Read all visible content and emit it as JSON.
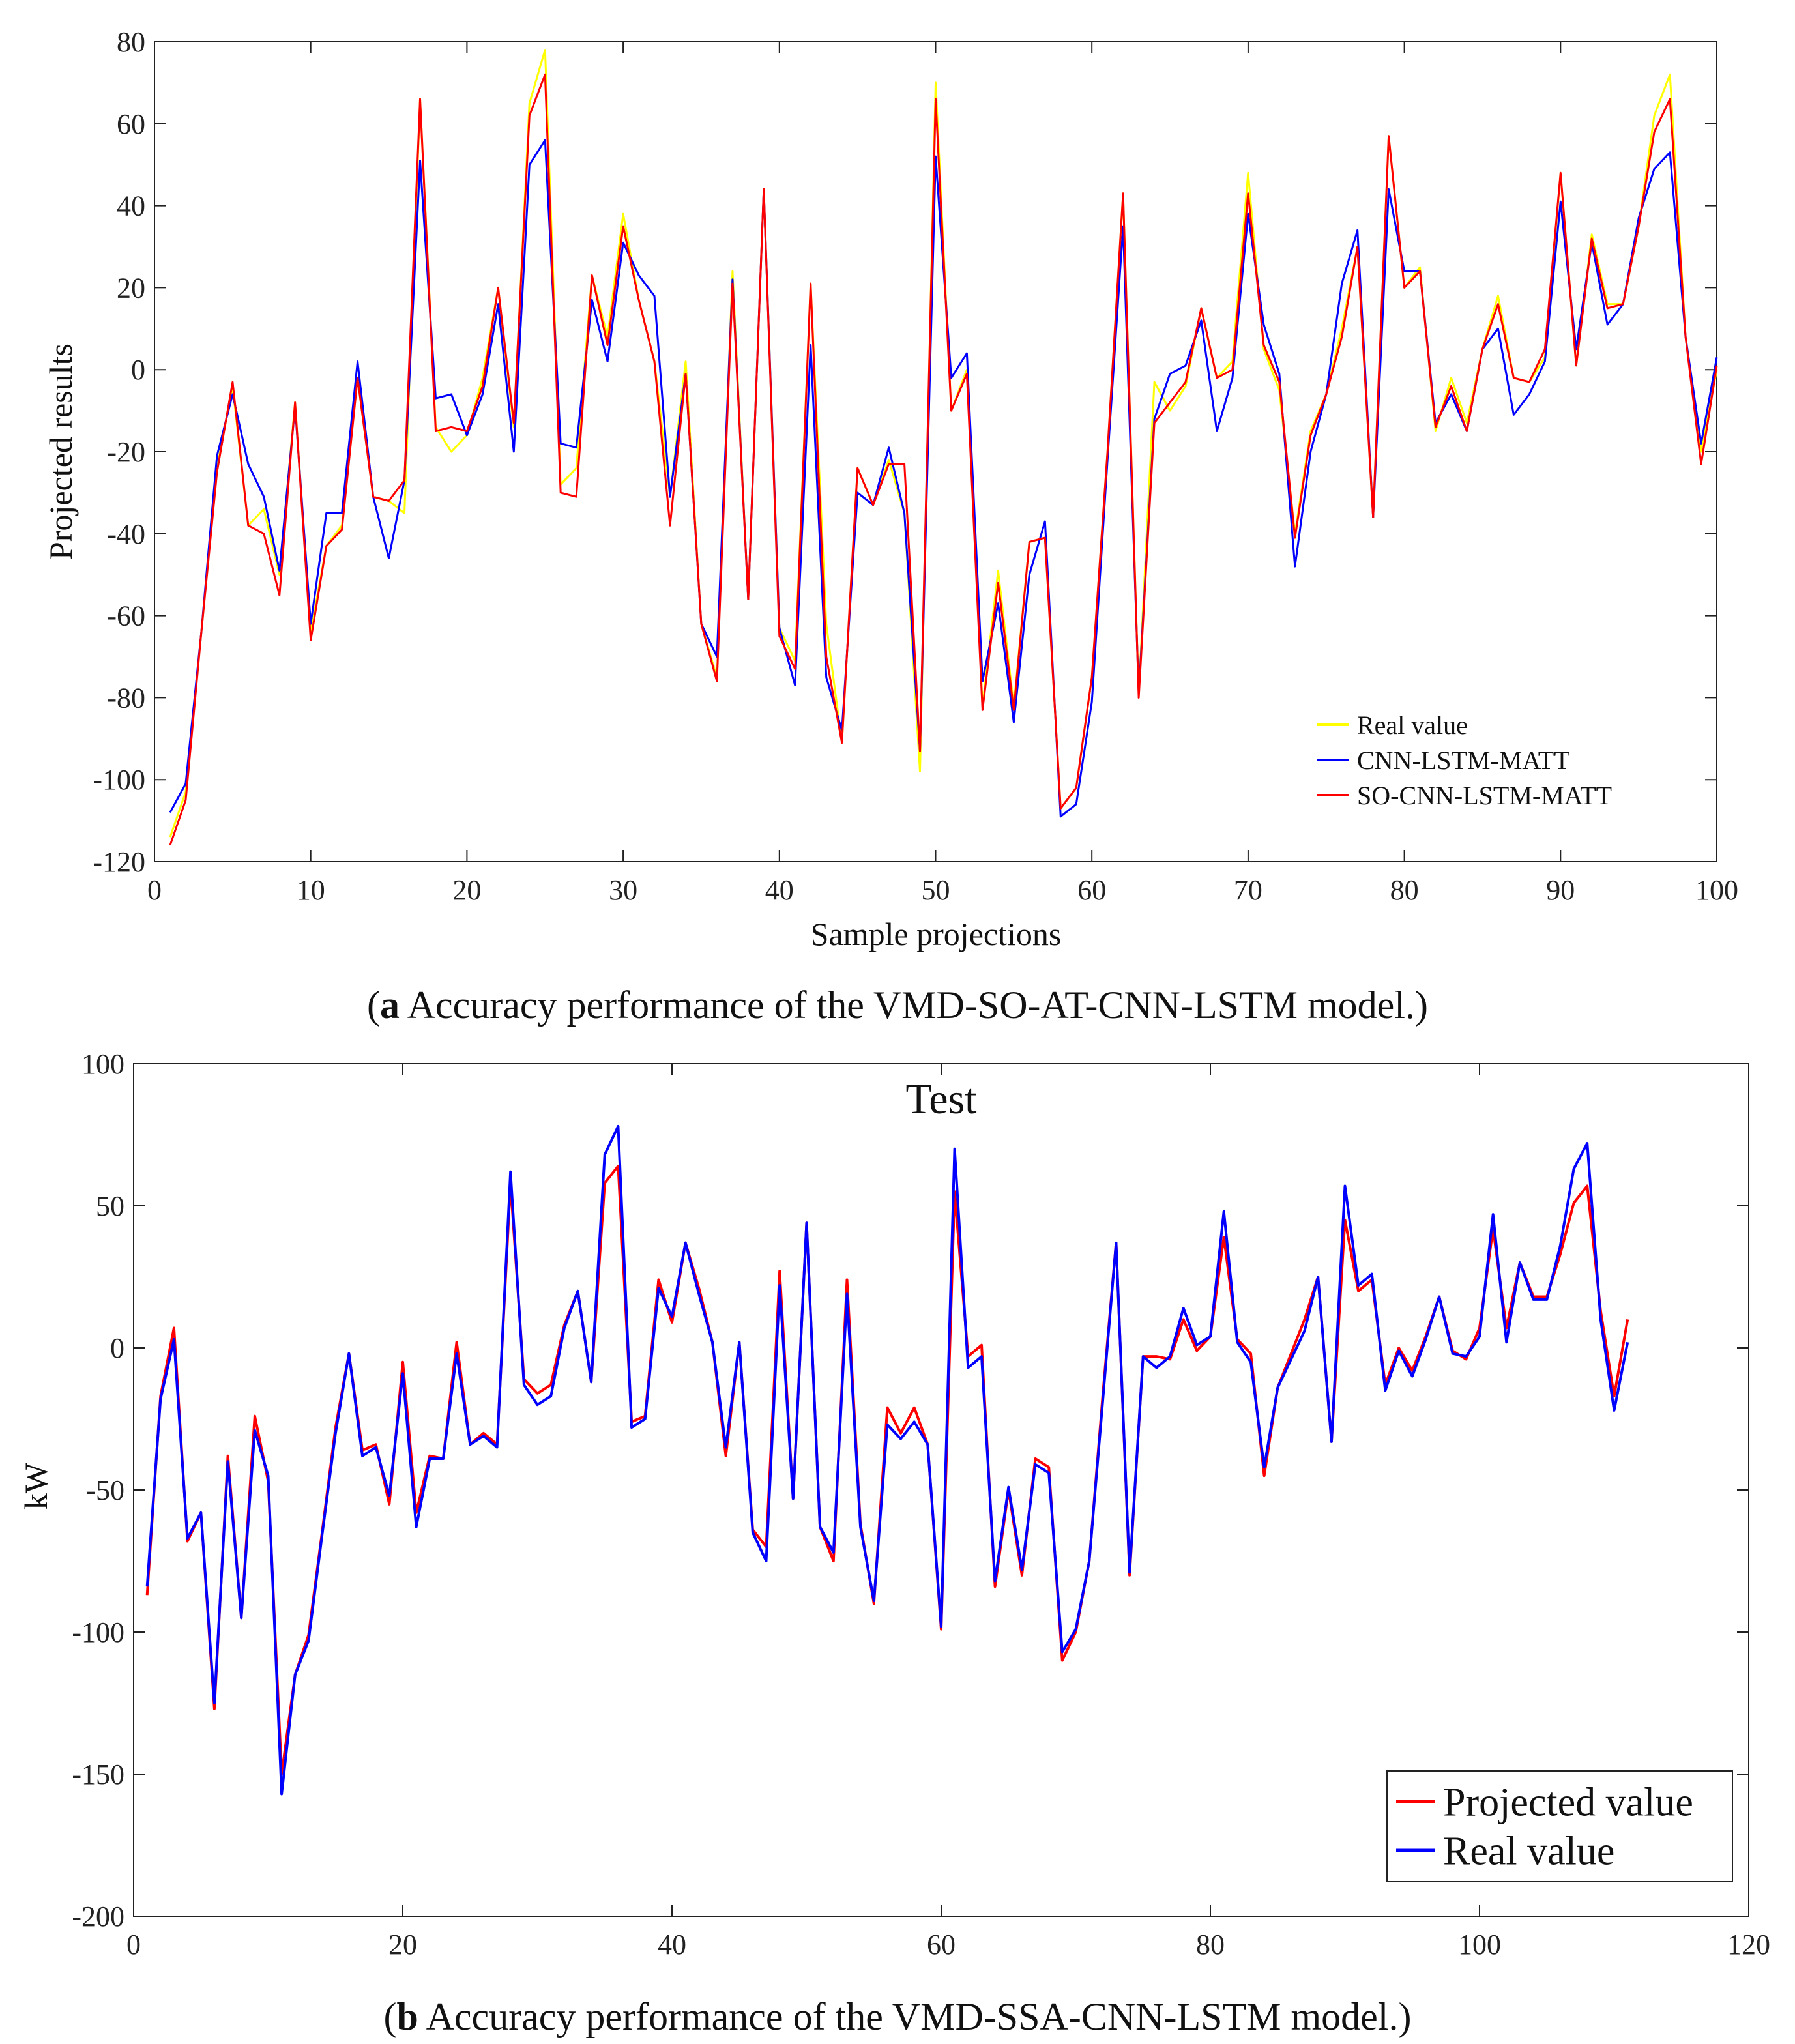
{
  "captions": {
    "a": {
      "letter": "a",
      "text": " Accuracy performance of the VMD-SO-AT-CNN-LSTM model."
    },
    "b": {
      "letter": "b",
      "text": " Accuracy performance of the VMD-SSA-CNN-LSTM model."
    }
  },
  "chart_data": [
    {
      "type": "line",
      "title": "",
      "xlabel": "Sample projections",
      "ylabel": "Projected results",
      "xlim": [
        0,
        100
      ],
      "ylim": [
        -120,
        80
      ],
      "xticks": [
        "0",
        "10",
        "20",
        "30",
        "40",
        "50",
        "60",
        "70",
        "80",
        "90",
        "100"
      ],
      "yticks": [
        "80",
        "60",
        "40",
        "20",
        "0",
        "-20",
        "-40",
        "-60",
        "-80",
        "-100",
        "-120"
      ],
      "grid": false,
      "legend_position": "bottom-right",
      "x": [
        1,
        2,
        3,
        4,
        5,
        6,
        7,
        8,
        9,
        10,
        11,
        12,
        13,
        14,
        15,
        16,
        17,
        18,
        19,
        20,
        21,
        22,
        23,
        24,
        25,
        26,
        27,
        28,
        29,
        30,
        31,
        32,
        33,
        34,
        35,
        36,
        37,
        38,
        39,
        40,
        41,
        42,
        43,
        44,
        45,
        46,
        47,
        48,
        49,
        50,
        51,
        52,
        53,
        54,
        55,
        56,
        57,
        58,
        59,
        60,
        61,
        62,
        63,
        64,
        65,
        66,
        67,
        68,
        69,
        70,
        71,
        72,
        73,
        74,
        75,
        76,
        77,
        78,
        79,
        80,
        81,
        82,
        83,
        84,
        85,
        86,
        87,
        88,
        89,
        90,
        91,
        92,
        93,
        94,
        95,
        96,
        97,
        98,
        99,
        100
      ],
      "series": [
        {
          "name": "Real value",
          "color": "#ffff00",
          "values": [
            -114,
            -103,
            -64,
            -24,
            -4,
            -38,
            -34,
            -50,
            -8,
            -64,
            -43,
            -38,
            -2,
            -31,
            -32,
            -35,
            66,
            -14,
            -20,
            -16,
            -2,
            20,
            -14,
            65,
            78,
            -28,
            -24,
            23,
            8,
            38,
            17,
            2,
            -31,
            2,
            -62,
            -75,
            24,
            -56,
            44,
            -63,
            -71,
            21,
            -62,
            -91,
            -24,
            -33,
            -22,
            -35,
            -98,
            70,
            -10,
            0,
            -82,
            -49,
            -82,
            -42,
            -41,
            -107,
            -102,
            -75,
            -20,
            43,
            -79,
            -3,
            -10,
            -4,
            15,
            -2,
            2,
            48,
            5,
            -5,
            -40,
            -15,
            -6,
            10,
            30,
            -36,
            57,
            20,
            25,
            -15,
            -2,
            -13,
            5,
            18,
            -2,
            -3,
            3,
            48,
            1,
            33,
            16,
            16,
            35,
            62,
            72,
            8,
            -20,
            0
          ]
        },
        {
          "name": "CNN-LSTM-MATT",
          "color": "#0000ff",
          "values": [
            -108,
            -101,
            -64,
            -21,
            -6,
            -23,
            -31,
            -49,
            -9,
            -62,
            -35,
            -35,
            2,
            -31,
            -46,
            -27,
            51,
            -7,
            -6,
            -16,
            -6,
            16,
            -20,
            50,
            56,
            -18,
            -19,
            17,
            2,
            31,
            23,
            18,
            -31,
            -1,
            -62,
            -70,
            22,
            -56,
            44,
            -63,
            -77,
            6,
            -75,
            -88,
            -30,
            -33,
            -19,
            -35,
            -93,
            52,
            -2,
            4,
            -76,
            -57,
            -86,
            -50,
            -37,
            -109,
            -106,
            -81,
            -22,
            35,
            -79,
            -12,
            -1,
            1,
            12,
            -15,
            -2,
            38,
            11,
            -1,
            -48,
            -20,
            -6,
            21,
            34,
            -36,
            44,
            24,
            24,
            -13,
            -6,
            -15,
            5,
            10,
            -11,
            -6,
            2,
            41,
            5,
            31,
            11,
            16,
            37,
            49,
            53,
            8,
            -18,
            3
          ]
        },
        {
          "name": "SO-CNN-LSTM-MATT",
          "color": "#ff0000",
          "values": [
            -116,
            -105,
            -64,
            -25,
            -3,
            -38,
            -40,
            -55,
            -8,
            -66,
            -43,
            -39,
            -2,
            -31,
            -32,
            -27,
            66,
            -15,
            -14,
            -15,
            -4,
            20,
            -13,
            62,
            72,
            -30,
            -31,
            23,
            6,
            35,
            17,
            2,
            -38,
            -1,
            -62,
            -76,
            21,
            -56,
            44,
            -65,
            -73,
            21,
            -70,
            -91,
            -24,
            -33,
            -23,
            -23,
            -93,
            66,
            -10,
            -1,
            -83,
            -52,
            -83,
            -42,
            -41,
            -107,
            -102,
            -75,
            -20,
            43,
            -80,
            -13,
            -8,
            -3,
            15,
            -2,
            0,
            43,
            6,
            -3,
            -41,
            -16,
            -6,
            8,
            30,
            -36,
            57,
            20,
            24,
            -14,
            -4,
            -15,
            5,
            16,
            -2,
            -3,
            5,
            48,
            1,
            32,
            15,
            16,
            35,
            58,
            66,
            8,
            -23,
            1
          ]
        }
      ]
    },
    {
      "type": "line",
      "title": "Test",
      "xlabel": "",
      "ylabel": "kW",
      "xlim": [
        0,
        120
      ],
      "ylim": [
        -200,
        100
      ],
      "xticks": [
        "0",
        "20",
        "40",
        "60",
        "80",
        "100",
        "120"
      ],
      "yticks": [
        "100",
        "50",
        "0",
        "-50",
        "-100",
        "-150",
        "-200"
      ],
      "grid": false,
      "legend_position": "bottom-right",
      "x": [
        1,
        2,
        3,
        4,
        5,
        6,
        7,
        8,
        9,
        10,
        11,
        12,
        13,
        14,
        15,
        16,
        17,
        18,
        19,
        20,
        21,
        22,
        23,
        24,
        25,
        26,
        27,
        28,
        29,
        30,
        31,
        32,
        33,
        34,
        35,
        36,
        37,
        38,
        39,
        40,
        41,
        42,
        43,
        44,
        45,
        46,
        47,
        48,
        49,
        50,
        51,
        52,
        53,
        54,
        55,
        56,
        57,
        58,
        59,
        60,
        61,
        62,
        63,
        64,
        65,
        66,
        67,
        68,
        69,
        70,
        71,
        72,
        73,
        74,
        75,
        76,
        77,
        78,
        79,
        80,
        81,
        82,
        83,
        84,
        85,
        86,
        87,
        88,
        89,
        90,
        91,
        92,
        93,
        94,
        95,
        96,
        97,
        98,
        99,
        100,
        101,
        102,
        103,
        104,
        105,
        106,
        107,
        108,
        109,
        110,
        111
      ],
      "series": [
        {
          "name": "Projected value",
          "color": "#ff0000",
          "values": [
            -87,
            -17,
            7,
            -68,
            -58,
            -127,
            -38,
            -95,
            -24,
            -47,
            -150,
            -115,
            -101,
            -65,
            -28,
            -2,
            -36,
            -34,
            -55,
            -5,
            -58,
            -38,
            -39,
            2,
            -34,
            -30,
            -34,
            58,
            -11,
            -16,
            -13,
            8,
            20,
            -12,
            58,
            64,
            -26,
            -24,
            24,
            9,
            37,
            21,
            2,
            -38,
            2,
            -64,
            -70,
            27,
            -53,
            44,
            -63,
            -75,
            24,
            -62,
            -90,
            -21,
            -30,
            -21,
            -34,
            -99,
            55,
            -3,
            1,
            -84,
            -50,
            -80,
            -39,
            -42,
            -110,
            -100,
            -75,
            -17,
            37,
            -80,
            -3,
            -3,
            -4,
            10,
            -1,
            4,
            39,
            3,
            -2,
            -45,
            -14,
            -2,
            10,
            25,
            -33,
            45,
            20,
            24,
            -13,
            0,
            -8,
            4,
            18,
            -1,
            -4,
            7,
            42,
            7,
            30,
            18,
            18,
            33,
            51,
            57,
            13,
            -17,
            10
          ]
        },
        {
          "name": "Real value",
          "color": "#0000ff",
          "values": [
            -84,
            -18,
            3,
            -67,
            -58,
            -125,
            -40,
            -95,
            -29,
            -45,
            -157,
            -115,
            -103,
            -66,
            -30,
            -2,
            -38,
            -35,
            -52,
            -9,
            -63,
            -39,
            -39,
            -2,
            -34,
            -31,
            -35,
            62,
            -13,
            -20,
            -17,
            7,
            20,
            -12,
            68,
            78,
            -28,
            -25,
            21,
            11,
            37,
            19,
            2,
            -35,
            2,
            -65,
            -75,
            22,
            -53,
            44,
            -63,
            -72,
            19,
            -63,
            -89,
            -27,
            -32,
            -26,
            -34,
            -98,
            70,
            -7,
            -3,
            -82,
            -49,
            -78,
            -41,
            -44,
            -107,
            -99,
            -75,
            -19,
            37,
            -79,
            -3,
            -7,
            -3,
            14,
            1,
            4,
            48,
            2,
            -5,
            -42,
            -14,
            -4,
            6,
            25,
            -33,
            57,
            22,
            26,
            -15,
            -1,
            -10,
            3,
            18,
            -2,
            -3,
            4,
            47,
            2,
            30,
            17,
            17,
            36,
            63,
            72,
            10,
            -22,
            2
          ]
        }
      ]
    }
  ]
}
